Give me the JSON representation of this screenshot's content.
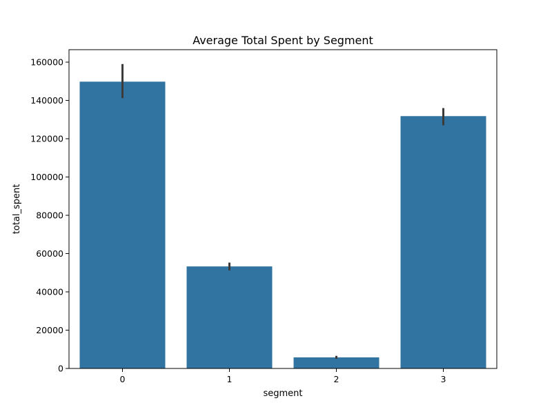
{
  "chart_data": {
    "type": "bar",
    "title": "Average Total Spent by Segment",
    "xlabel": "segment",
    "ylabel": "total_spent",
    "categories": [
      "0",
      "1",
      "2",
      "3"
    ],
    "values": [
      149800,
      53300,
      5800,
      131800
    ],
    "error_low": [
      141200,
      51200,
      5000,
      127000
    ],
    "error_high": [
      159000,
      55300,
      6600,
      136000
    ],
    "ylim": [
      0,
      166500
    ],
    "yticks": [
      0,
      20000,
      40000,
      60000,
      80000,
      100000,
      120000,
      140000,
      160000
    ],
    "ytick_labels": [
      "0",
      "20000",
      "40000",
      "60000",
      "80000",
      "100000",
      "120000",
      "140000",
      "160000"
    ],
    "grid": false,
    "bar_color": "#3274a1",
    "errorbar_color": "#3b3b3b"
  }
}
